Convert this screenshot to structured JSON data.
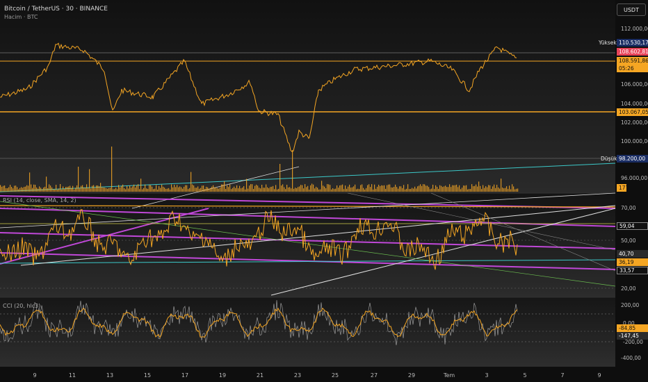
{
  "header": {
    "title": "Bitcoin / TetherUS · 30 · BINANCE",
    "subtitle": "Hacim · BTC"
  },
  "currency": "USDT",
  "price_axis": [
    "112.000,00",
    "110.000,00",
    "106.000,00",
    "104.000,00",
    "102.000,00",
    "100.000,00",
    "96.000,00"
  ],
  "price_tags": {
    "high_label": "Yüksek",
    "high_value": "110.530,17",
    "current": "108.602,81",
    "level1": "108.591,86",
    "countdown": "05:26",
    "level2": "103.067,05",
    "low_label": "Düşük",
    "low_value": "98.200,00",
    "volume": "177"
  },
  "rsi": {
    "label": "RSI (14, close, SMA, 14, 2)",
    "axis": [
      "70,00",
      "50,00",
      "20,00"
    ],
    "tags": [
      "59,04",
      "40,70",
      "36,19",
      "33,57"
    ]
  },
  "cci": {
    "label": "CCI (20, hlc3)",
    "axis": [
      "200,00",
      "0,00",
      "-200,00",
      "-400,00"
    ],
    "tags": [
      "-84,85",
      "-147,45"
    ]
  },
  "time_axis": [
    "9",
    "11",
    "13",
    "15",
    "17",
    "19",
    "21",
    "23",
    "25",
    "27",
    "29",
    "Tem",
    "3",
    "5",
    "7",
    "9"
  ],
  "colors": {
    "price": "#f5a623",
    "rsi_line": "#f5a623",
    "magenta": "#c048d8",
    "cyan": "#3cc9c9",
    "current_tag": "#e8445a",
    "orange_tag": "#f5a623",
    "navy_tag": "#1a2d63"
  }
}
